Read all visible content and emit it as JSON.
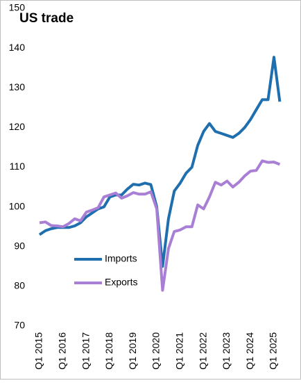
{
  "chart_data": {
    "type": "line",
    "title": "US trade",
    "categories": [
      "Q1 2015",
      null,
      null,
      null,
      "Q1 2016",
      null,
      null,
      null,
      "Q1 2017",
      null,
      null,
      null,
      "Q1 2018",
      null,
      null,
      null,
      "Q1 2019",
      null,
      null,
      null,
      "Q1 2020",
      null,
      null,
      null,
      "Q1 2021",
      null,
      null,
      null,
      "Q1 2022",
      null,
      null,
      null,
      "Q1 2023",
      null,
      null,
      null,
      "Q1 2024",
      null,
      null,
      null,
      "Q1 2025",
      null
    ],
    "series": [
      {
        "name": "Imports",
        "color": "#1f6fae",
        "values": [
          93.0,
          94.0,
          94.5,
          94.8,
          94.8,
          94.8,
          95.2,
          96.0,
          97.5,
          98.5,
          99.5,
          100.0,
          102.5,
          103.0,
          103.0,
          104.5,
          105.7,
          105.5,
          106.0,
          105.6,
          100.0,
          85.0,
          97.0,
          104.0,
          106.0,
          108.5,
          110.0,
          115.5,
          119.0,
          121.0,
          119.0,
          118.5,
          118.0,
          117.5,
          118.5,
          120.0,
          122.0,
          124.5,
          127.0,
          127.0,
          137.7,
          126.5
        ]
      },
      {
        "name": "Exports",
        "color": "#a97fd6",
        "values": [
          96.0,
          96.2,
          95.3,
          95.2,
          95.0,
          95.8,
          97.0,
          96.5,
          98.7,
          99.2,
          99.8,
          102.5,
          103.0,
          103.5,
          102.2,
          102.8,
          103.6,
          103.2,
          103.2,
          103.8,
          99.5,
          79.0,
          89.5,
          93.8,
          94.2,
          95.0,
          95.0,
          100.5,
          99.5,
          102.5,
          106.2,
          105.5,
          106.5,
          105.0,
          106.2,
          107.8,
          109.0,
          109.2,
          111.6,
          111.2,
          111.3,
          110.7
        ]
      }
    ],
    "ylim": [
      70,
      150
    ],
    "yticks": [
      70,
      80,
      90,
      100,
      110,
      120,
      130,
      140,
      150
    ],
    "grid": false
  }
}
